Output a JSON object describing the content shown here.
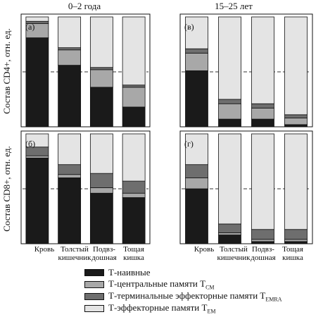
{
  "chart_data": {
    "type": "bar",
    "stacked": true,
    "ylim": [
      0,
      1
    ],
    "reference_line": 0.5,
    "columns": [
      {
        "title": "0–2 года"
      },
      {
        "title": "15–25 лет"
      }
    ],
    "row_labels": [
      "Состав CD4+, отн. ед.",
      "Состав CD8+, отн. ед."
    ],
    "categories": [
      {
        "line1": "Кровь",
        "line2": ""
      },
      {
        "line1": "Толстый",
        "line2": "кишечник"
      },
      {
        "line1": "Подвз-",
        "line2": "дошная"
      },
      {
        "line1": "Тощая",
        "line2": "кишка"
      }
    ],
    "legend": [
      {
        "key": "naive",
        "label": "Т-наивные",
        "sub": "",
        "color": "#1a1a1a"
      },
      {
        "key": "cm",
        "label": "Т-центральные памяти T",
        "sub": "CM",
        "color": "#a8a8a8"
      },
      {
        "key": "emra",
        "label": "Т-терминальные эффекторные памяти T",
        "sub": "EMRA",
        "color": "#6e6e6e"
      },
      {
        "key": "em",
        "label": "Т-эффекторные памяти T",
        "sub": "EM",
        "color": "#e4e4e4"
      }
    ],
    "panels": [
      {
        "label": "(а)",
        "series": {
          "naive": [
            0.81,
            0.56,
            0.36,
            0.18
          ],
          "cm": [
            0.13,
            0.14,
            0.16,
            0.18
          ],
          "emra": [
            0.02,
            0.02,
            0.02,
            0.02
          ],
          "em": [
            0.04,
            0.28,
            0.46,
            0.62
          ]
        }
      },
      {
        "label": "(в)",
        "series": {
          "naive": [
            0.51,
            0.07,
            0.07,
            0.02
          ],
          "cm": [
            0.16,
            0.14,
            0.1,
            0.06
          ],
          "emra": [
            0.04,
            0.04,
            0.04,
            0.03
          ],
          "em": [
            0.29,
            0.75,
            0.79,
            0.89
          ]
        }
      },
      {
        "label": "(б)",
        "series": {
          "naive": [
            0.78,
            0.6,
            0.46,
            0.42
          ],
          "cm": [
            0.02,
            0.03,
            0.05,
            0.04
          ],
          "emra": [
            0.08,
            0.09,
            0.13,
            0.11
          ],
          "em": [
            0.12,
            0.28,
            0.36,
            0.43
          ]
        }
      },
      {
        "label": "(г)",
        "series": {
          "naive": [
            0.5,
            0.08,
            0.02,
            0.02
          ],
          "cm": [
            0.1,
            0.02,
            0.02,
            0.02
          ],
          "emra": [
            0.12,
            0.08,
            0.09,
            0.09
          ],
          "em": [
            0.28,
            0.82,
            0.87,
            0.87
          ]
        }
      }
    ]
  }
}
